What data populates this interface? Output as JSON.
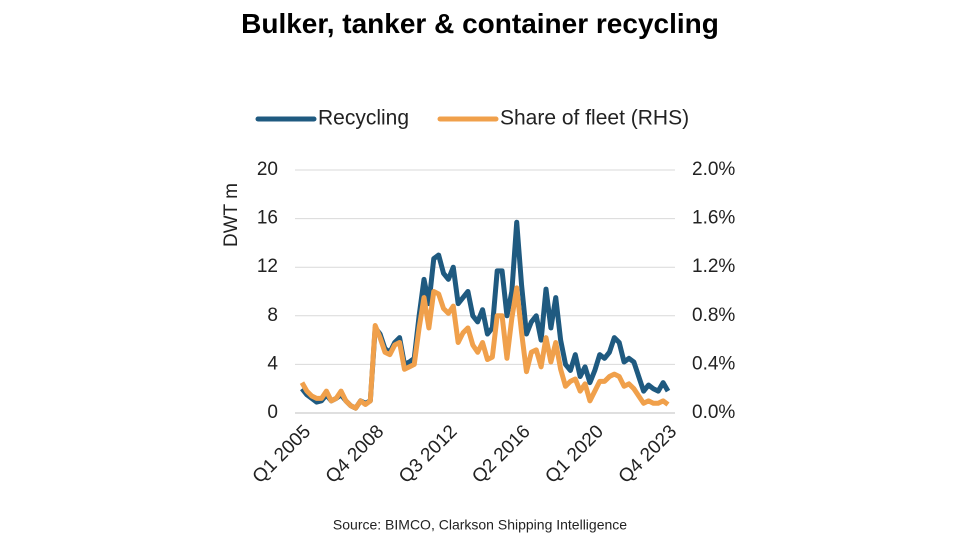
{
  "chart_data": {
    "type": "line",
    "title": "Bulker, tanker & container recycling",
    "y_label": "DWT m",
    "source": "Source: BIMCO, Clarkson Shipping Intelligence",
    "categories": [
      "Q1 2005",
      null,
      null,
      null,
      null,
      null,
      null,
      null,
      null,
      null,
      null,
      null,
      null,
      null,
      null,
      "Q4 2008",
      null,
      null,
      null,
      null,
      null,
      null,
      null,
      null,
      null,
      null,
      null,
      null,
      null,
      null,
      "Q3 2012",
      null,
      null,
      null,
      null,
      null,
      null,
      null,
      null,
      null,
      null,
      null,
      null,
      null,
      null,
      "Q2 2016",
      null,
      null,
      null,
      null,
      null,
      null,
      null,
      null,
      null,
      null,
      null,
      null,
      null,
      null,
      "Q1 2020",
      null,
      null,
      null,
      null,
      null,
      null,
      null,
      null,
      null,
      null,
      null,
      null,
      null,
      null,
      "Q4 2023"
    ],
    "series": [
      {
        "name": "Recycling",
        "color": "#1f5a80",
        "axis": "y",
        "values": [
          2.0,
          1.5,
          1.2,
          0.9,
          1.0,
          1.5,
          1.0,
          1.2,
          1.5,
          1.0,
          0.6,
          0.4,
          1.0,
          0.8,
          1.0,
          7.0,
          6.5,
          5.3,
          5.0,
          5.8,
          6.2,
          4.0,
          4.2,
          4.5,
          8.0,
          11.0,
          9.0,
          12.7,
          13.0,
          11.5,
          11.0,
          12.0,
          9.0,
          9.5,
          10.0,
          8.0,
          7.5,
          8.5,
          6.5,
          7.0,
          11.7,
          11.7,
          8.0,
          10.0,
          15.7,
          10.5,
          6.5,
          7.5,
          8.0,
          6.0,
          10.2,
          7.0,
          9.5,
          6.0,
          4.0,
          3.5,
          4.8,
          3.0,
          3.8,
          2.5,
          3.5,
          4.8,
          4.5,
          5.0,
          6.2,
          5.8,
          4.2,
          4.5,
          4.2,
          3.0,
          1.8,
          2.3,
          2.0,
          1.8,
          2.5,
          1.8
        ]
      },
      {
        "name": "Share of fleet (RHS)",
        "color": "#f0a04b",
        "axis": "y2",
        "values": [
          0.25,
          0.18,
          0.14,
          0.12,
          0.12,
          0.18,
          0.1,
          0.12,
          0.18,
          0.1,
          0.06,
          0.04,
          0.1,
          0.07,
          0.1,
          0.72,
          0.62,
          0.5,
          0.48,
          0.56,
          0.58,
          0.36,
          0.38,
          0.4,
          0.7,
          0.95,
          0.7,
          1.0,
          0.98,
          0.86,
          0.82,
          0.88,
          0.58,
          0.66,
          0.7,
          0.56,
          0.5,
          0.58,
          0.44,
          0.46,
          0.8,
          0.8,
          0.45,
          0.78,
          1.03,
          0.66,
          0.34,
          0.5,
          0.52,
          0.38,
          0.62,
          0.42,
          0.58,
          0.36,
          0.22,
          0.26,
          0.28,
          0.18,
          0.24,
          0.1,
          0.18,
          0.26,
          0.26,
          0.3,
          0.32,
          0.3,
          0.22,
          0.24,
          0.2,
          0.14,
          0.08,
          0.1,
          0.08,
          0.08,
          0.1,
          0.07
        ]
      }
    ],
    "ylim": [
      0,
      20
    ],
    "yticks": [
      0,
      4,
      8,
      12,
      16,
      20
    ],
    "y2lim": [
      0,
      2.0
    ],
    "y2ticks": [
      {
        "value": 0,
        "label": "0.0%"
      },
      {
        "value": 0.4,
        "label": "0.4%"
      },
      {
        "value": 0.8,
        "label": "0.8%"
      },
      {
        "value": 1.2,
        "label": "1.2%"
      },
      {
        "value": 1.6,
        "label": "1.6%"
      },
      {
        "value": 2.0,
        "label": "2.0%"
      }
    ],
    "grid": true,
    "legend": "top"
  }
}
